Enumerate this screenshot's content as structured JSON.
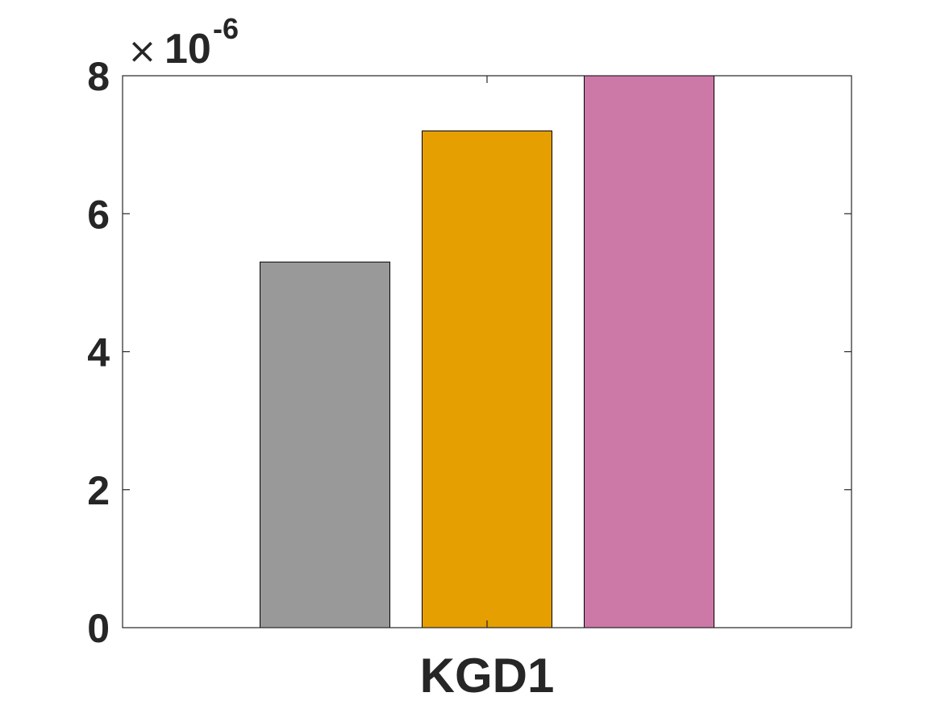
{
  "chart_data": {
    "type": "bar",
    "categories": [
      "KGD1"
    ],
    "series": [
      {
        "values": [
          5.3e-06
        ],
        "color": "#999999"
      },
      {
        "values": [
          7.2e-06
        ],
        "color": "#e69f00"
      },
      {
        "values": [
          8e-06
        ],
        "color": "#cc79a7"
      }
    ],
    "title": "",
    "xlabel": "",
    "ylabel": "",
    "ylim": [
      0,
      8e-06
    ],
    "yticks": [
      0,
      2,
      4,
      6,
      8
    ],
    "ytick_labels": [
      "0",
      "2",
      "4",
      "6",
      "8"
    ],
    "exponent_label": {
      "times": "×",
      "base": "10",
      "power": "-6"
    },
    "grid": false,
    "legend": "none",
    "box": true
  }
}
